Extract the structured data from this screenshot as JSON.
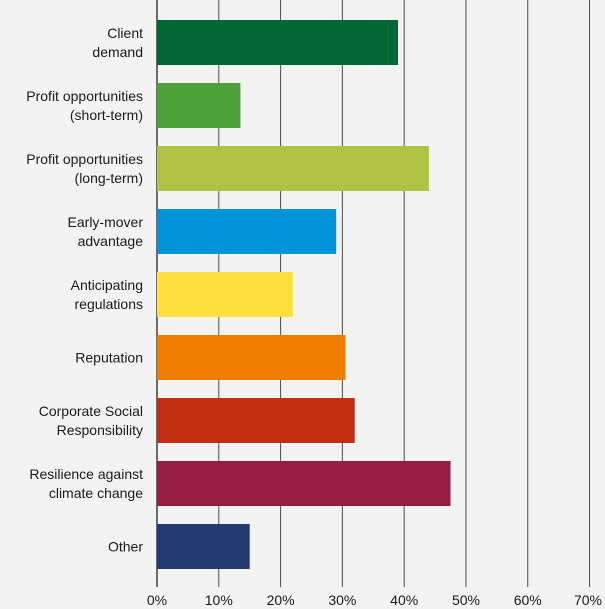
{
  "chart_data": {
    "type": "bar",
    "orientation": "horizontal",
    "title": "",
    "xlabel": "",
    "ylabel": "",
    "xlim": [
      0,
      70
    ],
    "grid": true,
    "legend": "none",
    "ticks": [
      "0%",
      "10%",
      "20%",
      "30%",
      "40%",
      "50%",
      "60%",
      "70%"
    ],
    "tick_values": [
      0,
      10,
      20,
      30,
      40,
      50,
      60,
      70
    ],
    "categories": [
      [
        "Client",
        "demand"
      ],
      [
        "Profit opportunities",
        "(short-term)"
      ],
      [
        "Profit opportunities",
        "(long-term)"
      ],
      [
        "Early-mover",
        "advantage"
      ],
      [
        "Anticipating",
        "regulations"
      ],
      [
        "Reputation"
      ],
      [
        "Corporate Social",
        "Responsibility"
      ],
      [
        "Resilience against",
        "climate change"
      ],
      [
        "Other"
      ]
    ],
    "values": [
      39,
      13.5,
      44,
      29,
      22,
      30.5,
      32,
      47.5,
      15
    ],
    "colors": [
      "#006633",
      "#4ea13a",
      "#afc244",
      "#0093d7",
      "#fddf3f",
      "#ee7d00",
      "#c12e12",
      "#951c43",
      "#233a70"
    ],
    "background": "#f3f3f3"
  }
}
